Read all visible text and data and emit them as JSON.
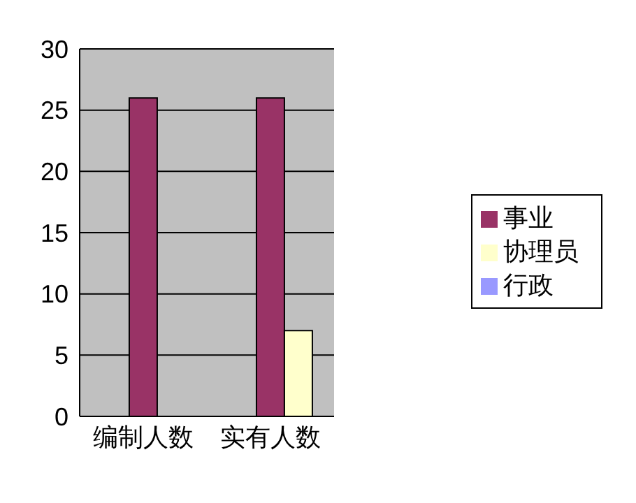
{
  "chart_data": {
    "type": "bar",
    "categories": [
      "编制人数",
      "实有人数"
    ],
    "series": [
      {
        "name": "行政",
        "color": "#9999ff",
        "values": [
          0,
          0
        ]
      },
      {
        "name": "事业",
        "color": "#993366",
        "values": [
          26,
          26
        ]
      },
      {
        "name": "协理员",
        "color": "#ffffcc",
        "values": [
          0,
          7
        ]
      }
    ],
    "ylim": [
      0,
      30
    ],
    "yticks": [
      0,
      5,
      10,
      15,
      20,
      25,
      30
    ],
    "grid": "y",
    "legend": "right"
  }
}
